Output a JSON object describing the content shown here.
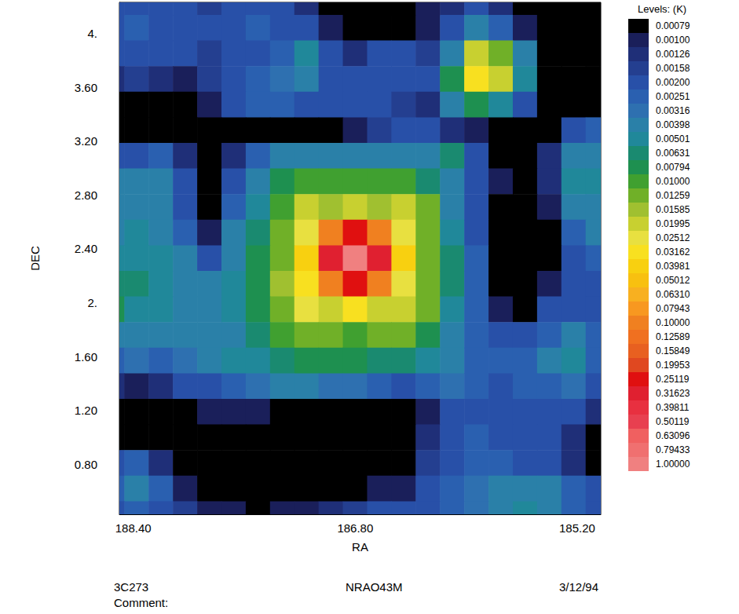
{
  "chart_data": {
    "type": "heatmap",
    "x_label": "RA",
    "y_label": "DEC",
    "xlim": [
      188.5,
      185.03
    ],
    "ylim": [
      0.43,
      4.23
    ],
    "xticks": [
      {
        "value": 188.4,
        "label": "188.40"
      },
      {
        "value": 186.8,
        "label": "186.80"
      },
      {
        "value": 185.2,
        "label": "185.20"
      }
    ],
    "yticks": [
      {
        "value": 0.8,
        "label": "0.80"
      },
      {
        "value": 1.2,
        "label": "1.20"
      },
      {
        "value": 1.6,
        "label": "1.60"
      },
      {
        "value": 2,
        "label": "2."
      },
      {
        "value": 2.4,
        "label": "2.40"
      },
      {
        "value": 2.8,
        "label": "2.80"
      },
      {
        "value": 3.2,
        "label": "3.20"
      },
      {
        "value": 3.6,
        "label": "3.60"
      },
      {
        "value": 4,
        "label": "4."
      }
    ],
    "grid": false,
    "annotations": [
      "3C273",
      "NRAO43M",
      "3/12/94",
      "Comment:"
    ],
    "cells": {
      "x": [
        188.55,
        188.375,
        188.2,
        188.025,
        187.85,
        187.675,
        187.5,
        187.325,
        187.15,
        186.975,
        186.8,
        186.625,
        186.45,
        186.275,
        186.1,
        185.925,
        185.75,
        185.575,
        185.4,
        185.225,
        185.05
      ],
      "y": [
        4.23,
        4.04,
        3.85,
        3.66,
        3.47,
        3.28,
        3.09,
        2.9,
        2.71,
        2.52,
        2.33,
        2.14,
        1.95,
        1.76,
        1.57,
        1.38,
        1.19,
        1.0,
        0.81,
        0.62,
        0.43
      ],
      "values": [
        [
          0.002,
          0.0025,
          0.002,
          0.002,
          0.0018,
          0.0022,
          0.0025,
          0.002,
          0.0015,
          0.0008,
          0.0006,
          0.0007,
          0.0008,
          0.0012,
          0.0015,
          0.002,
          0.0015,
          0.0008,
          0.0006,
          0.0005,
          0.0005
        ],
        [
          0.0025,
          0.003,
          0.0025,
          0.0022,
          0.002,
          0.0025,
          0.0028,
          0.0025,
          0.002,
          0.0012,
          0.0008,
          0.0007,
          0.0009,
          0.0012,
          0.0025,
          0.004,
          0.003,
          0.0012,
          0.0006,
          0.0005,
          0.0005
        ],
        [
          0.002,
          0.0025,
          0.0022,
          0.002,
          0.0018,
          0.002,
          0.0025,
          0.003,
          0.0055,
          0.0025,
          0.0015,
          0.002,
          0.0022,
          0.0018,
          0.005,
          0.02,
          0.015,
          0.004,
          0.0008,
          0.0006,
          0.0005
        ],
        [
          0.0015,
          0.0018,
          0.0015,
          0.0012,
          0.0018,
          0.0025,
          0.003,
          0.0035,
          0.004,
          0.0025,
          0.0022,
          0.0025,
          0.0022,
          0.002,
          0.008,
          0.035,
          0.025,
          0.006,
          0.0008,
          0.0005,
          0.0004
        ],
        [
          0.0009,
          0.0008,
          0.0007,
          0.0008,
          0.0012,
          0.002,
          0.0028,
          0.003,
          0.0025,
          0.0022,
          0.002,
          0.002,
          0.0018,
          0.0015,
          0.004,
          0.008,
          0.006,
          0.0025,
          0.0008,
          0.0006,
          0.0006
        ],
        [
          0.0008,
          0.0006,
          0.0005,
          0.0005,
          0.0006,
          0.0007,
          0.0008,
          0.0008,
          0.0009,
          0.0009,
          0.0012,
          0.0018,
          0.0025,
          0.002,
          0.0015,
          0.0012,
          0.0009,
          0.0007,
          0.0008,
          0.002,
          0.003
        ],
        [
          0.002,
          0.0025,
          0.0028,
          0.0015,
          0.0009,
          0.0015,
          0.003,
          0.004,
          0.0045,
          0.004,
          0.004,
          0.0045,
          0.005,
          0.005,
          0.007,
          0.002,
          0.0009,
          0.0008,
          0.0015,
          0.004,
          0.005
        ],
        [
          0.004,
          0.0045,
          0.004,
          0.002,
          0.0008,
          0.0025,
          0.005,
          0.008,
          0.012,
          0.012,
          0.01,
          0.012,
          0.012,
          0.007,
          0.004,
          0.002,
          0.0012,
          0.0009,
          0.0015,
          0.006,
          0.006
        ],
        [
          0.004,
          0.005,
          0.0045,
          0.0025,
          0.0009,
          0.003,
          0.006,
          0.012,
          0.025,
          0.018,
          0.02,
          0.018,
          0.022,
          0.013,
          0.005,
          0.002,
          0.0008,
          0.0007,
          0.0012,
          0.004,
          0.005
        ],
        [
          0.005,
          0.0055,
          0.005,
          0.003,
          0.0012,
          0.004,
          0.007,
          0.014,
          0.03,
          0.12,
          0.3,
          0.12,
          0.028,
          0.014,
          0.006,
          0.0025,
          0.0008,
          0.0006,
          0.0009,
          0.003,
          0.004
        ],
        [
          0.006,
          0.006,
          0.0055,
          0.004,
          0.002,
          0.005,
          0.008,
          0.015,
          0.04,
          0.35,
          1.0,
          0.35,
          0.04,
          0.015,
          0.007,
          0.003,
          0.0009,
          0.0006,
          0.0008,
          0.002,
          0.003
        ],
        [
          0.007,
          0.0065,
          0.006,
          0.005,
          0.004,
          0.006,
          0.009,
          0.016,
          0.035,
          0.12,
          0.3,
          0.12,
          0.03,
          0.015,
          0.007,
          0.003,
          0.0009,
          0.0007,
          0.0012,
          0.002,
          0.0025
        ],
        [
          0.008,
          0.006,
          0.0055,
          0.005,
          0.0045,
          0.0055,
          0.008,
          0.015,
          0.03,
          0.025,
          0.035,
          0.025,
          0.025,
          0.013,
          0.006,
          0.003,
          0.001,
          0.0009,
          0.002,
          0.0025,
          0.002
        ],
        [
          0.005,
          0.005,
          0.0045,
          0.004,
          0.004,
          0.005,
          0.007,
          0.01,
          0.015,
          0.014,
          0.012,
          0.014,
          0.015,
          0.008,
          0.005,
          0.0028,
          0.002,
          0.0025,
          0.003,
          0.004,
          0.003
        ],
        [
          0.003,
          0.0035,
          0.003,
          0.0035,
          0.004,
          0.0055,
          0.006,
          0.007,
          0.008,
          0.008,
          0.008,
          0.0075,
          0.007,
          0.006,
          0.004,
          0.003,
          0.0028,
          0.003,
          0.0045,
          0.0055,
          0.003
        ],
        [
          0.0015,
          0.0012,
          0.0015,
          0.002,
          0.0025,
          0.003,
          0.0035,
          0.004,
          0.004,
          0.0038,
          0.0035,
          0.003,
          0.0025,
          0.003,
          0.0035,
          0.003,
          0.0025,
          0.0028,
          0.003,
          0.0035,
          0.0025
        ],
        [
          0.0008,
          0.0007,
          0.0008,
          0.0009,
          0.0012,
          0.0012,
          0.001,
          0.0009,
          0.0009,
          0.0008,
          0.0008,
          0.0009,
          0.0009,
          0.0012,
          0.002,
          0.0025,
          0.002,
          0.0022,
          0.0025,
          0.002,
          0.0015
        ],
        [
          0.0006,
          0.0005,
          0.0005,
          0.0006,
          0.0006,
          0.0005,
          0.0005,
          0.0005,
          0.0006,
          0.0006,
          0.0007,
          0.0008,
          0.0009,
          0.0015,
          0.0025,
          0.003,
          0.0025,
          0.002,
          0.0022,
          0.0015,
          0.0009
        ],
        [
          0.002,
          0.003,
          0.0015,
          0.0007,
          0.0006,
          0.0006,
          0.0006,
          0.0006,
          0.0005,
          0.0005,
          0.0006,
          0.0007,
          0.0009,
          0.0018,
          0.0025,
          0.003,
          0.0028,
          0.0025,
          0.002,
          0.0015,
          0.0009
        ],
        [
          0.003,
          0.005,
          0.003,
          0.0012,
          0.0008,
          0.0007,
          0.0006,
          0.0007,
          0.0008,
          0.0008,
          0.0009,
          0.001,
          0.0012,
          0.002,
          0.003,
          0.0035,
          0.004,
          0.0045,
          0.004,
          0.003,
          0.002
        ],
        [
          0.0025,
          0.003,
          0.0025,
          0.0018,
          0.0012,
          0.001,
          0.0009,
          0.001,
          0.0012,
          0.0015,
          0.0018,
          0.002,
          0.0022,
          0.0025,
          0.003,
          0.0035,
          0.0045,
          0.006,
          0.005,
          0.003,
          0.002
        ]
      ]
    },
    "colorbar": {
      "title": "Levels: (K)",
      "ticks": [
        {
          "value": 0.00079,
          "label": "0.00079"
        },
        {
          "value": 0.001,
          "label": "0.00100"
        },
        {
          "value": 0.00126,
          "label": "0.00126"
        },
        {
          "value": 0.00158,
          "label": "0.00158"
        },
        {
          "value": 0.002,
          "label": "0.00200"
        },
        {
          "value": 0.00251,
          "label": "0.00251"
        },
        {
          "value": 0.00316,
          "label": "0.00316"
        },
        {
          "value": 0.00398,
          "label": "0.00398"
        },
        {
          "value": 0.00501,
          "label": "0.00501"
        },
        {
          "value": 0.00631,
          "label": "0.00631"
        },
        {
          "value": 0.00794,
          "label": "0.00794"
        },
        {
          "value": 0.01,
          "label": "0.01000"
        },
        {
          "value": 0.01259,
          "label": "0.01259"
        },
        {
          "value": 0.01585,
          "label": "0.01585"
        },
        {
          "value": 0.01995,
          "label": "0.01995"
        },
        {
          "value": 0.02512,
          "label": "0.02512"
        },
        {
          "value": 0.03162,
          "label": "0.03162"
        },
        {
          "value": 0.03981,
          "label": "0.03981"
        },
        {
          "value": 0.05012,
          "label": "0.05012"
        },
        {
          "value": 0.0631,
          "label": "0.06310"
        },
        {
          "value": 0.07943,
          "label": "0.07943"
        },
        {
          "value": 0.1,
          "label": "0.10000"
        },
        {
          "value": 0.12589,
          "label": "0.12589"
        },
        {
          "value": 0.15849,
          "label": "0.15849"
        },
        {
          "value": 0.19953,
          "label": "0.19953"
        },
        {
          "value": 0.25119,
          "label": "0.25119"
        },
        {
          "value": 0.31623,
          "label": "0.31623"
        },
        {
          "value": 0.39811,
          "label": "0.39811"
        },
        {
          "value": 0.50119,
          "label": "0.50119"
        },
        {
          "value": 0.63096,
          "label": "0.63096"
        },
        {
          "value": 0.79433,
          "label": "0.79433"
        },
        {
          "value": 1.0,
          "label": "1.00000"
        }
      ],
      "colors": [
        "#000000",
        "#1a1f5a",
        "#1f2f78",
        "#243f90",
        "#2850a8",
        "#2a60b0",
        "#2e70b0",
        "#2a80a8",
        "#20889a",
        "#1a8a70",
        "#1e9050",
        "#40a030",
        "#70b028",
        "#a0c030",
        "#c8d030",
        "#e8e040",
        "#f8e020",
        "#f8d010",
        "#f8c010",
        "#f8b020",
        "#f89820",
        "#f08020",
        "#f07020",
        "#e86020",
        "#e04820",
        "#e01010",
        "#e02030",
        "#e83040",
        "#e84050",
        "#f06060",
        "#f07070",
        "#f08080"
      ]
    }
  }
}
